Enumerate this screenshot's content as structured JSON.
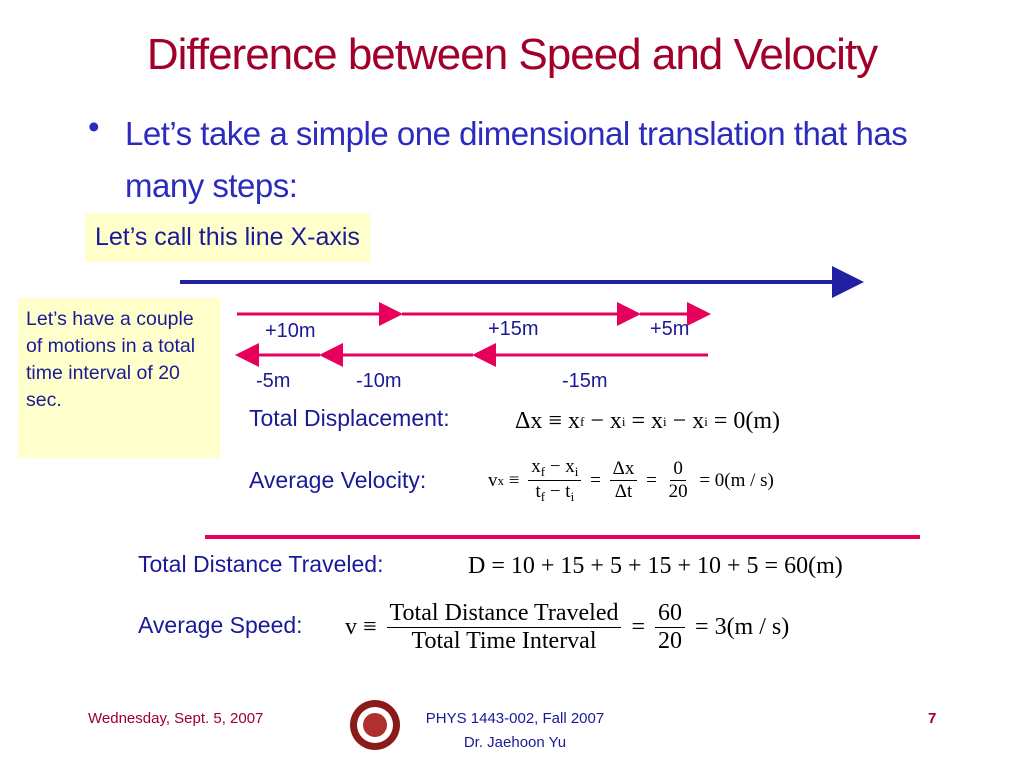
{
  "title": "Difference between Speed and Velocity",
  "bullet": "Let’s take a simple one dimensional translation that has many steps:",
  "axis_note": "Let’s call this line X-axis",
  "motions_note": "Let’s have a couple of motions in a total time interval of 20 sec.",
  "motions": {
    "forward": [
      "+10m",
      "+15m",
      "+5m"
    ],
    "backward": [
      "-5m",
      "-10m",
      "-15m"
    ]
  },
  "total_displacement": {
    "label": "Total Displacement:",
    "formula": [
      {
        "text": "Δx ≡ x",
        "sub": "f"
      },
      {
        "text": " − x",
        "sub": "i"
      },
      {
        "text": " = x",
        "sub": "i"
      },
      {
        "text": " − x",
        "sub": "i"
      },
      {
        "text": " = 0(m)"
      }
    ]
  },
  "average_velocity": {
    "label": "Average Velocity:",
    "formula": [
      {
        "text": "v",
        "sub": "x"
      },
      {
        "text": " ≡ "
      },
      {
        "num": [
          {
            "text": "x",
            "sub": "f"
          },
          {
            "text": " − x",
            "sub": "i"
          }
        ],
        "den": [
          {
            "text": "t",
            "sub": "f"
          },
          {
            "text": " − t",
            "sub": "i"
          }
        ]
      },
      {
        "text": " = "
      },
      {
        "num": [
          {
            "text": "Δx"
          }
        ],
        "den": [
          {
            "text": "Δt"
          }
        ]
      },
      {
        "text": " = "
      },
      {
        "num": [
          {
            "text": "0"
          }
        ],
        "den": [
          {
            "text": "20"
          }
        ]
      },
      {
        "text": " = 0(m / s)"
      }
    ]
  },
  "total_distance": {
    "label": "Total Distance Traveled:",
    "formula": [
      {
        "text": "D = 10 + 15 + 5 + 15 + 10 + 5 = 60(m)"
      }
    ]
  },
  "average_speed": {
    "label": "Average Speed:",
    "formula": [
      {
        "text": "v ≡ "
      },
      {
        "num": [
          {
            "text": "Total Distance Traveled"
          }
        ],
        "den": [
          {
            "text": "Total Time Interval"
          }
        ]
      },
      {
        "text": " = "
      },
      {
        "num": [
          {
            "text": "60"
          }
        ],
        "den": [
          {
            "text": "20"
          }
        ]
      },
      {
        "text": " = 3(m / s)"
      }
    ]
  },
  "footer": {
    "date": "Wednesday, Sept. 5, 2007",
    "course": "PHYS 1443-002, Fall 2007",
    "instructor": "Dr. Jaehoon Yu",
    "page": 7
  }
}
